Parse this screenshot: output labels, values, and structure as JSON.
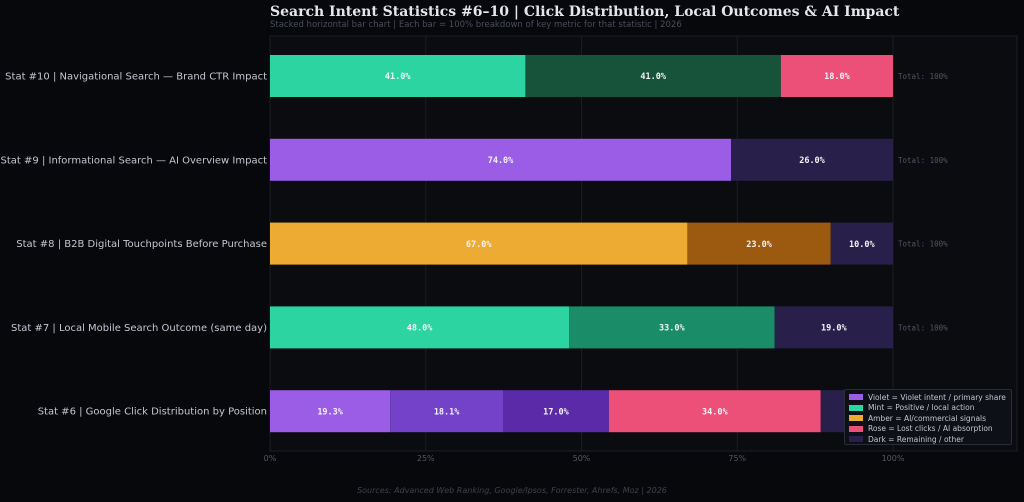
{
  "header": {
    "title": "Search Intent Statistics #6–10  |  Click Distribution, Local Outcomes & AI Impact",
    "subtitle": "Stacked horizontal bar chart  |  Each bar = 100% breakdown of key metric for that statistic  |  2026"
  },
  "footer": {
    "source": "Sources: Advanced Web Ranking, Google/Ipsos, Forrester, Ahrefs, Moz  |  2026"
  },
  "colors": {
    "violet": "#9b5de5",
    "violet_mid": "#7442c8",
    "violet_deep": "#5a2aa8",
    "mint": "#2bd4a1",
    "mint_dark": "#1a8c68",
    "forest": "#17533b",
    "amber": "#eeab33",
    "amber_dark": "#9c5a10",
    "rose": "#ec5078",
    "dark": "#28204a",
    "plot_bg": "#0b0c10",
    "grid": "#1b1d25"
  },
  "chart_data": {
    "type": "bar",
    "orientation": "horizontal",
    "stacked": true,
    "xlim": [
      0,
      100
    ],
    "x_ticks": [
      "0%",
      "25%",
      "50%",
      "75%",
      "100%"
    ],
    "x_tick_values": [
      0,
      25,
      50,
      75,
      100
    ],
    "grid": true,
    "legend_position": "bottom-right",
    "categories": [
      {
        "label": "Stat #10  |  Navigational Search — Brand CTR Impact",
        "total_label": "Total: 100%",
        "segments": [
          {
            "value": 41.0,
            "label": "41.0%",
            "color": "#2bd4a1"
          },
          {
            "value": 41.0,
            "label": "41.0%",
            "color": "#17533b"
          },
          {
            "value": 18.0,
            "label": "18.0%",
            "color": "#ec5078"
          }
        ]
      },
      {
        "label": "Stat #9  |  Informational Search — AI Overview Impact",
        "total_label": "Total: 100%",
        "segments": [
          {
            "value": 74.0,
            "label": "74.0%",
            "color": "#9b5de5"
          },
          {
            "value": 26.0,
            "label": "26.0%",
            "color": "#28204a"
          }
        ]
      },
      {
        "label": "Stat #8  |  B2B Digital Touchpoints Before Purchase",
        "total_label": "Total: 100%",
        "segments": [
          {
            "value": 67.0,
            "label": "67.0%",
            "color": "#eeab33"
          },
          {
            "value": 23.0,
            "label": "23.0%",
            "color": "#9c5a10"
          },
          {
            "value": 10.0,
            "label": "10.0%",
            "color": "#28204a"
          }
        ]
      },
      {
        "label": "Stat #7  |  Local Mobile Search Outcome (same day)",
        "total_label": "Total: 100%",
        "segments": [
          {
            "value": 48.0,
            "label": "48.0%",
            "color": "#2bd4a1"
          },
          {
            "value": 33.0,
            "label": "33.0%",
            "color": "#1a8c68"
          },
          {
            "value": 19.0,
            "label": "19.0%",
            "color": "#28204a"
          }
        ]
      },
      {
        "label": "Stat #6  |  Google Click Distribution by Position",
        "total_label": "",
        "segments": [
          {
            "value": 19.3,
            "label": "19.3%",
            "color": "#9b5de5"
          },
          {
            "value": 18.1,
            "label": "18.1%",
            "color": "#7442c8"
          },
          {
            "value": 17.0,
            "label": "17.0%",
            "color": "#5a2aa8"
          },
          {
            "value": 34.0,
            "label": "34.0%",
            "color": "#ec5078"
          },
          {
            "value": 11.6,
            "label": "",
            "color": "#28204a"
          }
        ]
      }
    ],
    "legend": [
      {
        "label": "Violet = Violet intent / primary share",
        "color": "#9b5de5"
      },
      {
        "label": "Mint = Positive / local action",
        "color": "#2bd4a1"
      },
      {
        "label": "Amber = AI/commercial signals",
        "color": "#eeab33"
      },
      {
        "label": "Rose = Lost clicks / AI absorption",
        "color": "#ec5078"
      },
      {
        "label": "Dark = Remaining / other",
        "color": "#28204a"
      }
    ]
  }
}
